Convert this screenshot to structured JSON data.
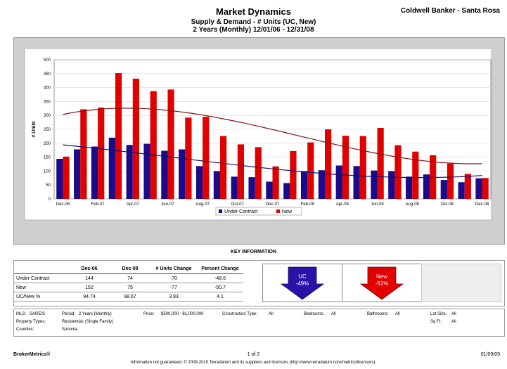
{
  "header": {
    "title": "Market Dynamics",
    "subtitle1": "Supply & Demand - # Units (UC, New)",
    "subtitle2": "2 Years (Monthly) 12/01/06 - 12/31/08",
    "company": "Coldwell Banker - Santa Rosa"
  },
  "chart_data": {
    "type": "bar",
    "ylabel": "# Units",
    "ylim": [
      0,
      500
    ],
    "yticks": [
      0,
      50,
      100,
      150,
      200,
      250,
      300,
      350,
      400,
      450,
      500
    ],
    "x_tick_labels": [
      "Dec-06",
      "Feb-07",
      "Apr-07",
      "Jun-07",
      "Aug-07",
      "Oct-07",
      "Dec-07",
      "Feb-08",
      "Apr-08",
      "Jun-08",
      "Aug-08",
      "Oct-08",
      "Dec-08"
    ],
    "months": [
      "Dec-06",
      "Jan-07",
      "Feb-07",
      "Mar-07",
      "Apr-07",
      "May-07",
      "Jun-07",
      "Jul-07",
      "Aug-07",
      "Sep-07",
      "Oct-07",
      "Nov-07",
      "Dec-07",
      "Jan-08",
      "Feb-08",
      "Mar-08",
      "Apr-08",
      "May-08",
      "Jun-08",
      "Jul-08",
      "Aug-08",
      "Sep-08",
      "Oct-08",
      "Nov-08",
      "Dec-08"
    ],
    "series": [
      {
        "name": "Under Contract",
        "color": "#1a0a8c",
        "trend_color": "#1a0a6e",
        "values": [
          144,
          178,
          188,
          220,
          194,
          198,
          173,
          178,
          118,
          100,
          80,
          78,
          62,
          57,
          100,
          103,
          120,
          118,
          102,
          100,
          80,
          88,
          68,
          60,
          74
        ]
      },
      {
        "name": "New",
        "color": "#e00000",
        "trend_color": "#8a1010",
        "values": [
          152,
          322,
          328,
          452,
          432,
          387,
          393,
          292,
          295,
          226,
          196,
          186,
          117,
          172,
          203,
          250,
          227,
          226,
          255,
          193,
          170,
          157,
          127,
          90,
          75
        ]
      }
    ],
    "grid": true,
    "legend": "bottom"
  },
  "key": {
    "title": "KEY INFORMATION",
    "columns": [
      "",
      "Dec-06",
      "Dec-08",
      "# Units Change",
      "Percent Change"
    ],
    "rows": [
      [
        "Under Contract",
        "144",
        "74",
        "-70",
        "-48.6"
      ],
      [
        "New",
        "152",
        "75",
        "-77",
        "-50.7"
      ],
      [
        "UC/New %",
        "94.74",
        "98.67",
        "3.93",
        "4.1"
      ]
    ],
    "uc_arrow": {
      "label": "UC",
      "value": "-49%",
      "color": "#2a12a8"
    },
    "new_arrow": {
      "label": "New",
      "value": "-51%",
      "color": "#e00000"
    }
  },
  "filters": {
    "mls_label": "MLS:",
    "mls_value": "SAREIS",
    "period_label": "Period:",
    "period_value": "2 Years (Monthly)",
    "price_label": "Price:",
    "price_value": "$500,000 - $1,000,000",
    "construction_label": "Construction Type:",
    "construction_value": "All",
    "bedrooms_label": "Bedrooms:",
    "bedrooms_value": "All",
    "bathrooms_label": "Bathrooms:",
    "bathrooms_value": "All",
    "lotsize_label": "Lot Size:",
    "lotsize_value": "All",
    "proptype_label": "Property Types:",
    "proptype_value": "Residential: (Single Family)",
    "sqft_label": "Sq Ft:",
    "sqft_value": "All",
    "counties_label": "Counties:",
    "counties_value": "Sonoma"
  },
  "footer": {
    "brand": "BrokerMetrics®",
    "page": "1 of 2",
    "date": "01/09/09",
    "disclaimer": "Information not guaranteed. © 2009-2010 Terradatum and its suppliers and licensors (http://www.terradatum.com/metrics/licensors)."
  }
}
